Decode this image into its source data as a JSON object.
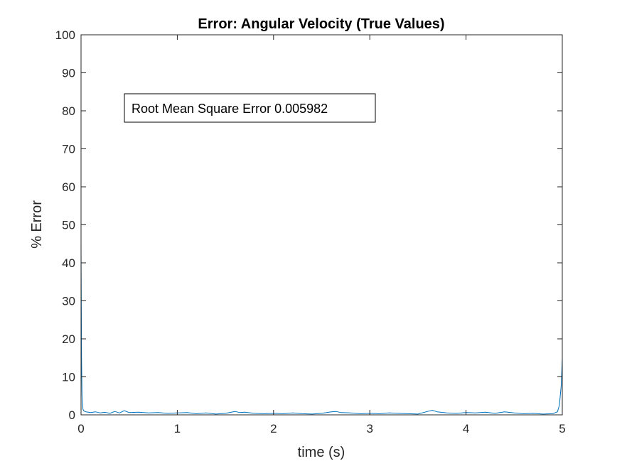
{
  "chart_data": {
    "type": "line",
    "title": "Error: Angular Velocity (True Values)",
    "xlabel": "time (s)",
    "ylabel": "% Error",
    "xlim": [
      0,
      5
    ],
    "ylim": [
      0,
      100
    ],
    "xticks": [
      0,
      1,
      2,
      3,
      4,
      5
    ],
    "yticks": [
      0,
      10,
      20,
      30,
      40,
      50,
      60,
      70,
      80,
      90,
      100
    ],
    "grid": false,
    "annotation": "Root Mean Square Error 0.005982",
    "series": [
      {
        "color": "#0072BD",
        "x": [
          0,
          0.005,
          0.01,
          0.02,
          0.03,
          0.05,
          0.1,
          0.15,
          0.2,
          0.25,
          0.3,
          0.35,
          0.4,
          0.45,
          0.5,
          0.6,
          0.7,
          0.8,
          0.9,
          1.0,
          1.1,
          1.2,
          1.3,
          1.4,
          1.5,
          1.6,
          1.65,
          1.7,
          1.8,
          1.9,
          2.0,
          2.1,
          2.2,
          2.3,
          2.4,
          2.5,
          2.6,
          2.65,
          2.7,
          2.8,
          2.9,
          3.0,
          3.1,
          3.2,
          3.3,
          3.4,
          3.5,
          3.6,
          3.65,
          3.7,
          3.8,
          3.9,
          4.0,
          4.1,
          4.2,
          4.3,
          4.4,
          4.5,
          4.6,
          4.7,
          4.8,
          4.9,
          4.95,
          4.97,
          4.99,
          5.0
        ],
        "y": [
          45,
          15,
          5,
          1.5,
          1.0,
          0.8,
          0.6,
          0.8,
          0.5,
          0.7,
          0.4,
          0.9,
          0.5,
          1.1,
          0.6,
          0.7,
          0.5,
          0.6,
          0.4,
          0.5,
          0.6,
          0.3,
          0.5,
          0.2,
          0.4,
          0.9,
          0.6,
          0.7,
          0.4,
          0.3,
          0.4,
          0.3,
          0.5,
          0.3,
          0.2,
          0.4,
          0.8,
          0.9,
          0.6,
          0.5,
          0.3,
          0.4,
          0.3,
          0.5,
          0.4,
          0.3,
          0.2,
          0.9,
          1.2,
          0.8,
          0.5,
          0.4,
          0.6,
          0.5,
          0.7,
          0.4,
          0.8,
          0.5,
          0.3,
          0.4,
          0.2,
          0.3,
          0.8,
          2.5,
          8,
          15
        ]
      }
    ]
  }
}
